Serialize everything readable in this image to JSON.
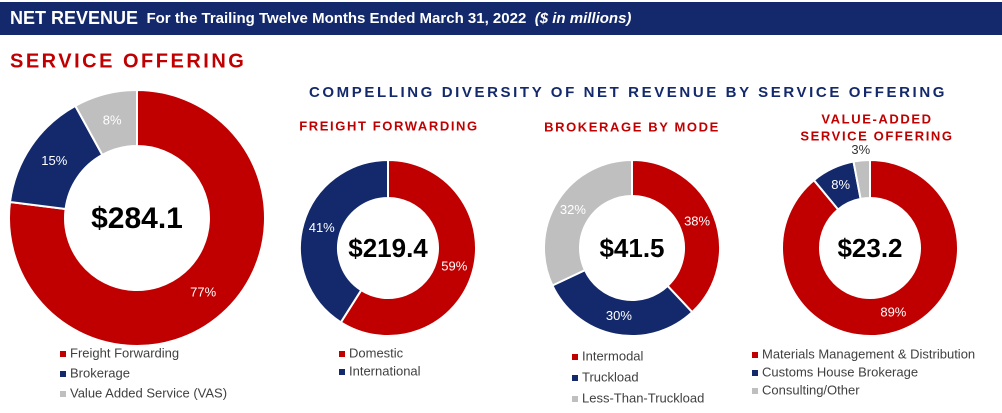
{
  "header": {
    "title": "NET REVENUE",
    "subtitle": "For the Trailing Twelve Months Ended March 31, 2022",
    "units": "($ in millions)"
  },
  "subheading": "COMPELLING DIVERSITY OF NET REVENUE BY SERVICE OFFERING",
  "chart_data": [
    {
      "type": "donut",
      "title": "SERVICE OFFERING",
      "center_label": "$284.1",
      "categories": [
        "Freight Forwarding",
        "Brokerage",
        "Value Added Service (VAS)"
      ],
      "values": [
        77,
        15,
        8
      ],
      "value_labels": [
        "77%",
        "15%",
        "8%"
      ],
      "colors": [
        "#c00000",
        "#13296b",
        "#bfbfbf"
      ]
    },
    {
      "type": "donut",
      "title": "FREIGHT FORWARDING",
      "center_label": "$219.4",
      "categories": [
        "Domestic",
        "International"
      ],
      "values": [
        59,
        41
      ],
      "value_labels": [
        "59%",
        "41%"
      ],
      "colors": [
        "#c00000",
        "#13296b"
      ]
    },
    {
      "type": "donut",
      "title": "BROKERAGE BY MODE",
      "center_label": "$41.5",
      "categories": [
        "Intermodal",
        "Truckload",
        "Less-Than-Truckload"
      ],
      "values": [
        38,
        30,
        32
      ],
      "value_labels": [
        "38%",
        "30%",
        "32%"
      ],
      "colors": [
        "#c00000",
        "#13296b",
        "#bfbfbf"
      ]
    },
    {
      "type": "donut",
      "title": [
        "VALUE-ADDED",
        "SERVICE OFFERING"
      ],
      "center_label": "$23.2",
      "categories": [
        "Materials Management & Distribution",
        "Customs House Brokerage",
        "Consulting/Other"
      ],
      "values": [
        89,
        8,
        3
      ],
      "value_labels": [
        "89%",
        "8%",
        "3%"
      ],
      "colors": [
        "#c00000",
        "#13296b",
        "#bfbfbf"
      ]
    }
  ]
}
